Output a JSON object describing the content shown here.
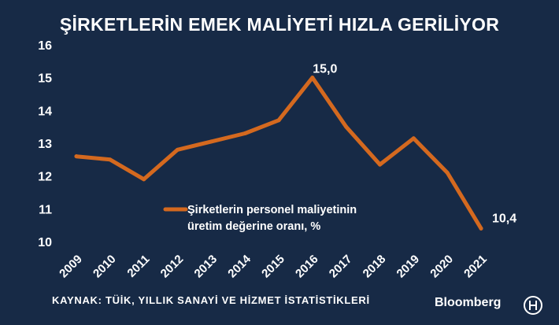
{
  "title": "ŞİRKETLERİN EMEK MALİYETİ HIZLA GERİLİYOR",
  "source": "KAYNAK: TÜİK, YILLIK SANAYİ VE HİZMET İSTATİSTİKLERİ",
  "brand": "Bloomberg",
  "colors": {
    "background": "#172a46",
    "line": "#d4691f",
    "text": "#ffffff"
  },
  "chart_data": {
    "type": "line",
    "title": "ŞİRKETLERİN EMEK MALİYETİ HIZLA GERİLİYOR",
    "categories": [
      "2009",
      "2010",
      "2011",
      "2012",
      "2013",
      "2014",
      "2015",
      "2016",
      "2017",
      "2018",
      "2019",
      "2020",
      "2021"
    ],
    "series": [
      {
        "name": "Şirketlerin personel maliyetinin üretim değerine oranı, %",
        "values": [
          12.6,
          12.5,
          11.9,
          12.8,
          13.05,
          13.3,
          13.7,
          15.0,
          13.5,
          12.35,
          13.15,
          12.1,
          10.4
        ]
      }
    ],
    "yticks": [
      "10",
      "11",
      "12",
      "13",
      "14",
      "15",
      "16"
    ],
    "ylim": [
      10,
      16
    ],
    "data_labels": [
      {
        "index": 7,
        "text": "15,0"
      },
      {
        "index": 12,
        "text": "10,4"
      }
    ],
    "legend": {
      "line1": "Şirketlerin personel maliyetinin",
      "line2": "üretim değerine oranı, %",
      "position": "center"
    },
    "grid": false
  }
}
